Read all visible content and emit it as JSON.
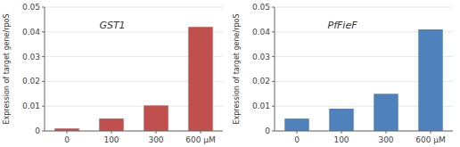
{
  "chart_data": [
    {
      "type": "bar",
      "categories": [
        "0",
        "100",
        "300",
        "600 μM"
      ],
      "values": [
        0.001,
        0.005,
        0.0103,
        0.042
      ],
      "color": "#c0504d",
      "annotation": "GST1",
      "ylim": [
        0,
        0.05
      ],
      "yticks": [
        0,
        0.01,
        0.02,
        0.03,
        0.04,
        0.05
      ],
      "ylabel": "Expression of target gene/rpoS"
    },
    {
      "type": "bar",
      "categories": [
        "0",
        "100",
        "300",
        "600 μM"
      ],
      "values": [
        0.005,
        0.009,
        0.015,
        0.041
      ],
      "color": "#4f81bd",
      "annotation": "PfFieF",
      "ylim": [
        0,
        0.05
      ],
      "yticks": [
        0,
        0.01,
        0.02,
        0.03,
        0.04,
        0.05
      ],
      "ylabel": "Expression of target gene/rpoS"
    }
  ]
}
